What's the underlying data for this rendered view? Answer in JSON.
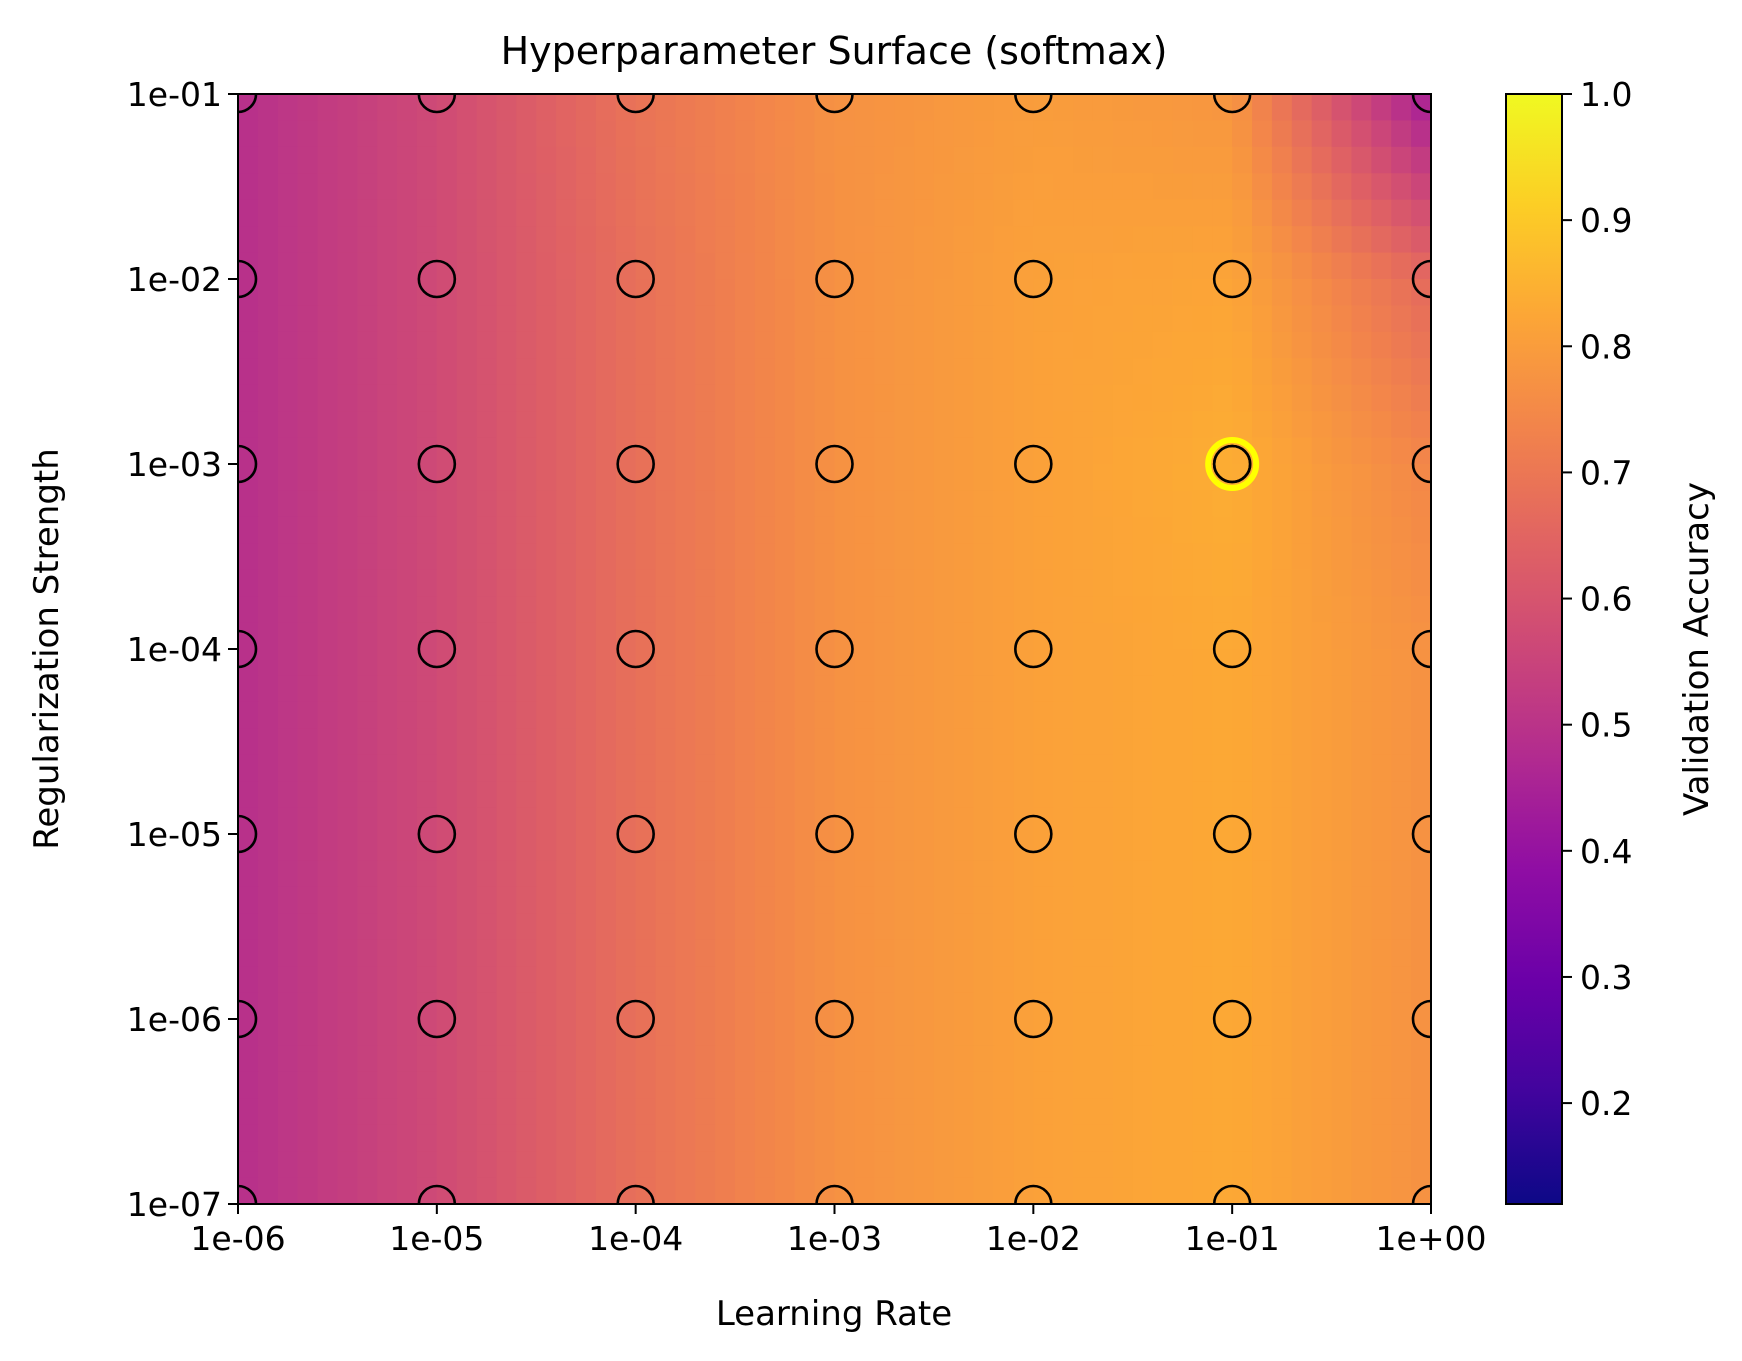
{
  "chart_data": {
    "type": "heatmap",
    "title": "Hyperparameter Surface (softmax)",
    "xlabel": "Learning Rate",
    "ylabel": "Regularization Strength",
    "x_scale": "log",
    "y_scale": "log",
    "x": [
      1e-06,
      1e-05,
      0.0001,
      0.001,
      0.01,
      0.1,
      1
    ],
    "y": [
      1e-07,
      1e-06,
      1e-05,
      0.0001,
      0.001,
      0.01,
      0.1
    ],
    "x_tick_labels": [
      "1e-06",
      "1e-05",
      "1e-04",
      "1e-03",
      "1e-02",
      "1e-01",
      "1e+00"
    ],
    "y_tick_labels": [
      "1e-07",
      "1e-06",
      "1e-05",
      "1e-04",
      "1e-03",
      "1e-02",
      "1e-01"
    ],
    "colormap": "plasma",
    "values_by_y": [
      [
        0.49,
        0.57,
        0.68,
        0.77,
        0.81,
        0.83,
        0.77
      ],
      [
        0.49,
        0.57,
        0.68,
        0.77,
        0.81,
        0.83,
        0.77
      ],
      [
        0.49,
        0.57,
        0.68,
        0.77,
        0.81,
        0.83,
        0.77
      ],
      [
        0.49,
        0.57,
        0.68,
        0.77,
        0.81,
        0.83,
        0.77
      ],
      [
        0.49,
        0.57,
        0.68,
        0.77,
        0.81,
        0.84,
        0.74
      ],
      [
        0.49,
        0.57,
        0.68,
        0.77,
        0.81,
        0.82,
        0.66
      ],
      [
        0.49,
        0.57,
        0.69,
        0.77,
        0.8,
        0.78,
        0.43
      ]
    ],
    "best": {
      "x": 0.1,
      "y": 0.001
    },
    "best_marker_color": "#ffff00",
    "marker_edge_color": "#000000",
    "colorbar": {
      "label": "Validation Accuracy",
      "range": [
        0.12,
        1.0
      ],
      "ticks": [
        0.2,
        0.3,
        0.4,
        0.5,
        0.6,
        0.7,
        0.8,
        0.9,
        1.0
      ],
      "tick_labels": [
        "0.2",
        "0.3",
        "0.4",
        "0.5",
        "0.6",
        "0.7",
        "0.8",
        "0.9",
        "1.0"
      ]
    },
    "grid": false
  }
}
